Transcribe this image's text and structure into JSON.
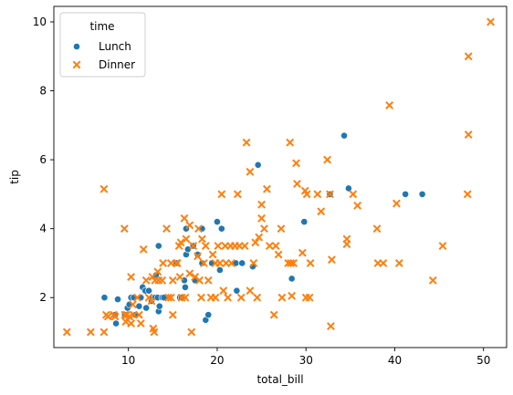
{
  "chart_data": {
    "type": "scatter",
    "xlabel": "total_bill",
    "ylabel": "tip",
    "xlim": [
      1.6,
      52.6
    ],
    "ylim": [
      0.55,
      10.45
    ],
    "xticks": [
      10,
      20,
      30,
      40,
      50
    ],
    "yticks": [
      2,
      4,
      6,
      8,
      10
    ],
    "grid": false,
    "legend": {
      "title": "time",
      "position": "top-left"
    },
    "series": [
      {
        "name": "Lunch",
        "marker": "circle",
        "color": "#1f77b4",
        "points": [
          [
            7.3,
            2.0
          ],
          [
            8.5,
            1.5
          ],
          [
            8.6,
            1.25
          ],
          [
            8.8,
            1.95
          ],
          [
            9.6,
            1.5
          ],
          [
            9.9,
            1.7
          ],
          [
            10.1,
            1.8
          ],
          [
            10.3,
            2.0
          ],
          [
            10.6,
            2.0
          ],
          [
            10.8,
            1.5
          ],
          [
            11.2,
            1.75
          ],
          [
            11.4,
            2.0
          ],
          [
            11.6,
            2.3
          ],
          [
            11.9,
            2.2
          ],
          [
            12.0,
            1.7
          ],
          [
            12.3,
            2.2
          ],
          [
            12.6,
            1.9
          ],
          [
            12.7,
            2.0
          ],
          [
            13.0,
            2.0
          ],
          [
            13.1,
            2.65
          ],
          [
            13.3,
            2.0
          ],
          [
            13.4,
            3.5
          ],
          [
            13.4,
            1.6
          ],
          [
            13.5,
            1.75
          ],
          [
            13.8,
            2.0
          ],
          [
            14.0,
            2.0
          ],
          [
            15.4,
            3.0
          ],
          [
            15.8,
            2.0
          ],
          [
            16.0,
            2.0
          ],
          [
            16.3,
            2.5
          ],
          [
            16.4,
            2.3
          ],
          [
            16.5,
            3.25
          ],
          [
            16.5,
            4.0
          ],
          [
            16.7,
            3.4
          ],
          [
            17.3,
            3.5
          ],
          [
            17.5,
            2.5
          ],
          [
            17.8,
            3.25
          ],
          [
            18.3,
            4.0
          ],
          [
            18.3,
            3.0
          ],
          [
            18.7,
            1.35
          ],
          [
            19.0,
            1.5
          ],
          [
            19.4,
            3.0
          ],
          [
            20.0,
            4.2
          ],
          [
            20.3,
            2.8
          ],
          [
            20.5,
            4.0
          ],
          [
            22.1,
            3.0
          ],
          [
            22.2,
            2.2
          ],
          [
            22.8,
            3.0
          ],
          [
            24.0,
            2.9
          ],
          [
            24.6,
            5.85
          ],
          [
            28.4,
            2.55
          ],
          [
            29.8,
            4.2
          ],
          [
            32.7,
            5.0
          ],
          [
            34.3,
            6.7
          ],
          [
            34.8,
            5.17
          ],
          [
            41.2,
            5.0
          ],
          [
            43.1,
            5.0
          ]
        ]
      },
      {
        "name": "Dinner",
        "marker": "x",
        "color": "#ff7f0e",
        "points": [
          [
            3.07,
            1.0
          ],
          [
            5.75,
            1.0
          ],
          [
            7.25,
            1.0
          ],
          [
            7.25,
            5.15
          ],
          [
            7.5,
            1.5
          ],
          [
            7.7,
            1.45
          ],
          [
            8.35,
            1.5
          ],
          [
            8.5,
            1.45
          ],
          [
            9.55,
            4.0
          ],
          [
            9.6,
            1.5
          ],
          [
            9.7,
            1.3
          ],
          [
            9.8,
            1.5
          ],
          [
            10.1,
            1.45
          ],
          [
            10.3,
            1.25
          ],
          [
            10.3,
            2.6
          ],
          [
            10.5,
            1.8
          ],
          [
            10.6,
            1.5
          ],
          [
            11.0,
            2.0
          ],
          [
            11.2,
            1.5
          ],
          [
            11.4,
            1.25
          ],
          [
            11.7,
            3.4
          ],
          [
            12.0,
            2.5
          ],
          [
            12.3,
            2.0
          ],
          [
            12.6,
            1.9
          ],
          [
            12.7,
            2.6
          ],
          [
            12.8,
            1.1
          ],
          [
            12.9,
            1.0
          ],
          [
            13.0,
            2.5
          ],
          [
            13.3,
            2.75
          ],
          [
            13.4,
            2.5
          ],
          [
            13.8,
            2.5
          ],
          [
            13.9,
            3.0
          ],
          [
            14.3,
            4.0
          ],
          [
            14.5,
            2.0
          ],
          [
            14.8,
            3.0
          ],
          [
            14.8,
            2.0
          ],
          [
            15.0,
            2.5
          ],
          [
            15.0,
            1.5
          ],
          [
            15.4,
            3.0
          ],
          [
            15.5,
            3.0
          ],
          [
            15.7,
            3.5
          ],
          [
            15.8,
            2.6
          ],
          [
            15.9,
            3.6
          ],
          [
            16.0,
            2.0
          ],
          [
            16.3,
            4.3
          ],
          [
            16.4,
            2.0
          ],
          [
            16.5,
            3.7
          ],
          [
            16.9,
            4.1
          ],
          [
            16.9,
            2.7
          ],
          [
            17.1,
            1.0
          ],
          [
            17.3,
            3.5
          ],
          [
            17.5,
            2.6
          ],
          [
            17.8,
            3.2
          ],
          [
            17.9,
            4.0
          ],
          [
            18.0,
            2.5
          ],
          [
            18.2,
            2.0
          ],
          [
            18.3,
            3.7
          ],
          [
            18.5,
            3.0
          ],
          [
            18.7,
            3.5
          ],
          [
            19.0,
            2.5
          ],
          [
            19.3,
            2.0
          ],
          [
            19.5,
            3.25
          ],
          [
            19.8,
            3.0
          ],
          [
            19.8,
            2.0
          ],
          [
            20.1,
            3.5
          ],
          [
            20.3,
            3.0
          ],
          [
            20.5,
            5.0
          ],
          [
            20.7,
            2.2
          ],
          [
            20.9,
            3.5
          ],
          [
            21.0,
            3.0
          ],
          [
            21.2,
            2.0
          ],
          [
            21.5,
            3.5
          ],
          [
            21.6,
            3.0
          ],
          [
            22.0,
            3.5
          ],
          [
            22.3,
            5.0
          ],
          [
            22.5,
            3.5
          ],
          [
            22.7,
            2.0
          ],
          [
            23.1,
            3.5
          ],
          [
            23.3,
            6.5
          ],
          [
            23.7,
            2.2
          ],
          [
            23.7,
            5.65
          ],
          [
            24.1,
            3.0
          ],
          [
            24.3,
            3.6
          ],
          [
            24.5,
            2.0
          ],
          [
            24.7,
            3.75
          ],
          [
            25.0,
            4.7
          ],
          [
            25.0,
            4.3
          ],
          [
            25.3,
            4.0
          ],
          [
            25.6,
            5.15
          ],
          [
            25.9,
            3.5
          ],
          [
            26.4,
            1.5
          ],
          [
            26.6,
            3.5
          ],
          [
            26.9,
            3.25
          ],
          [
            27.2,
            4.0
          ],
          [
            27.3,
            2.0
          ],
          [
            28.0,
            3.0
          ],
          [
            28.2,
            6.5
          ],
          [
            28.3,
            3.0
          ],
          [
            28.4,
            2.05
          ],
          [
            28.6,
            3.0
          ],
          [
            28.9,
            5.9
          ],
          [
            29.0,
            5.3
          ],
          [
            29.6,
            3.3
          ],
          [
            29.9,
            5.1
          ],
          [
            30.0,
            2.0
          ],
          [
            30.1,
            5.0
          ],
          [
            30.4,
            2.0
          ],
          [
            30.5,
            3.0
          ],
          [
            31.3,
            5.0
          ],
          [
            31.7,
            4.5
          ],
          [
            32.4,
            6.0
          ],
          [
            32.7,
            5.0
          ],
          [
            32.8,
            1.17
          ],
          [
            32.9,
            3.1
          ],
          [
            34.6,
            3.55
          ],
          [
            34.6,
            3.7
          ],
          [
            35.3,
            5.0
          ],
          [
            35.8,
            4.67
          ],
          [
            38.0,
            4.0
          ],
          [
            38.1,
            3.0
          ],
          [
            38.7,
            3.0
          ],
          [
            39.4,
            7.58
          ],
          [
            40.2,
            4.73
          ],
          [
            40.5,
            3.0
          ],
          [
            44.3,
            2.5
          ],
          [
            45.4,
            3.5
          ],
          [
            48.2,
            5.0
          ],
          [
            48.3,
            9.0
          ],
          [
            48.3,
            6.73
          ],
          [
            50.8,
            10.0
          ]
        ]
      }
    ]
  }
}
